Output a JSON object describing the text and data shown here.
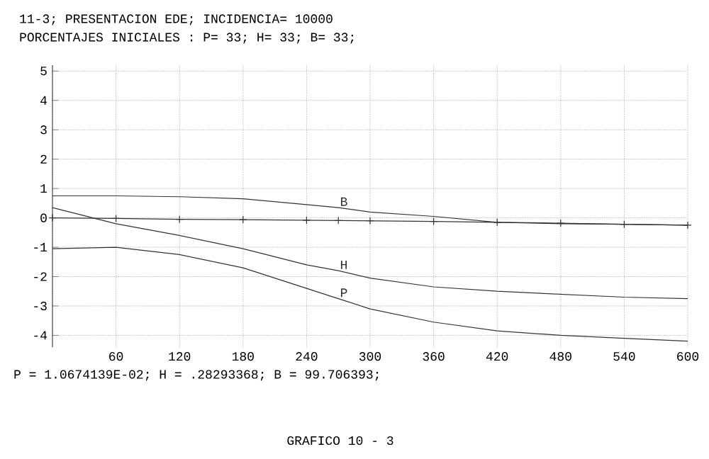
{
  "chart_data": {
    "type": "line",
    "title": "11-3; PRESENTACION EDE;  INCIDENCIA= 10000",
    "subtitle": "PORCENTAJES INICIALES : P= 33; H= 33; B= 33;",
    "annotations": [
      "P = 1.0674139E-02; H = .28293368; B = 99.706393;",
      "GRAFICO  10 - 3"
    ],
    "x": [
      0,
      60,
      120,
      180,
      240,
      270,
      300,
      360,
      420,
      480,
      540,
      600
    ],
    "series": [
      {
        "name": "B",
        "color": "#333333",
        "values": [
          0.75,
          0.75,
          0.72,
          0.65,
          0.45,
          0.35,
          0.2,
          0.05,
          -0.15,
          -0.2,
          -0.22,
          -0.25
        ]
      },
      {
        "name": "H",
        "color": "#333333",
        "values": [
          0.35,
          -0.2,
          -0.6,
          -1.05,
          -1.6,
          -1.8,
          -2.05,
          -2.35,
          -2.5,
          -2.6,
          -2.7,
          -2.75
        ]
      },
      {
        "name": "P",
        "color": "#333333",
        "values": [
          -1.05,
          -1.0,
          -1.25,
          -1.7,
          -2.4,
          -2.75,
          -3.1,
          -3.55,
          -3.85,
          -4.0,
          -4.1,
          -4.2
        ]
      },
      {
        "color": "#333333",
        "marker": "cross",
        "values": [
          0,
          -0.02,
          -0.05,
          -0.06,
          -0.08,
          -0.09,
          -0.1,
          -0.12,
          -0.15,
          -0.18,
          -0.22,
          -0.25
        ]
      }
    ],
    "xlim": [
      0,
      600
    ],
    "ylim": [
      -4.4,
      5.2
    ],
    "xticks": [
      {
        "value": 0,
        "label": null
      },
      60,
      120,
      180,
      240,
      300,
      360,
      420,
      480,
      540,
      600
    ],
    "yticks": [
      -4,
      -3,
      -2,
      -1,
      0,
      1,
      2,
      3,
      4,
      5
    ],
    "grid": true,
    "marker": "none",
    "line_style": "solid"
  }
}
